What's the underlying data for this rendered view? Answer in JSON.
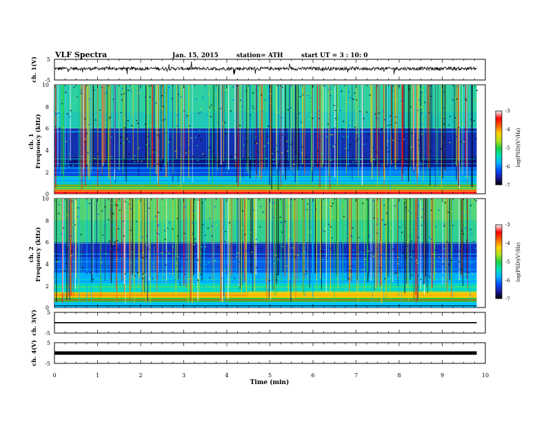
{
  "header": {
    "title": "VLF Spectra",
    "date": "Jan. 15, 2015",
    "station": "station= ATH",
    "start": "start  UT =  3 : 10: 0"
  },
  "chart_data": [
    {
      "type": "line",
      "panel": "ch1",
      "ylabel": "ch. 1(V)",
      "ylim": [
        -5,
        5
      ],
      "y_ticks": [
        "5",
        "-5"
      ],
      "baseline_v": 0.5,
      "xlim": [
        0,
        10
      ]
    },
    {
      "type": "heatmap",
      "panel": "ch1-spectrogram",
      "ylabel_line1": "ch. 1",
      "ylabel_line2": "Frequency  (kHz)",
      "ylim": [
        0,
        10
      ],
      "y_ticks": [
        "0",
        "2",
        "4",
        "6",
        "8",
        "10"
      ],
      "xlim": [
        0,
        9.8
      ],
      "step_time_min": 4.5,
      "colorbar": {
        "label": "log(PSD)(V²/Hz)",
        "range": [
          -7,
          -3
        ],
        "ticks": [
          "-3",
          "-4",
          "-5",
          "-6",
          "-7"
        ],
        "colors": [
          "#000000",
          "#1a1aa0",
          "#0050ff",
          "#00b4ff",
          "#00e0b0",
          "#22d040",
          "#b8e020",
          "#ffd000",
          "#ff6000",
          "#ff0000",
          "#ffffff"
        ]
      }
    },
    {
      "type": "heatmap",
      "panel": "ch2-spectrogram",
      "ylabel_line1": "ch. 2",
      "ylabel_line2": "Frequency  (kHz)",
      "ylim": [
        0,
        10
      ],
      "y_ticks": [
        "0",
        "2",
        "4",
        "6",
        "8",
        "10"
      ],
      "xlim": [
        0,
        9.8
      ],
      "step_time_min": 4.5,
      "colorbar": {
        "label": "log(PSD)(V²/Hz)",
        "range": [
          -7,
          -3
        ],
        "ticks": [
          "-3",
          "-4",
          "-5",
          "-6",
          "-7"
        ],
        "colors": [
          "#000000",
          "#1a1aa0",
          "#0050ff",
          "#00b4ff",
          "#00e0b0",
          "#22d040",
          "#b8e020",
          "#ffd000",
          "#ff6000",
          "#ff0000",
          "#ffffff"
        ]
      }
    },
    {
      "type": "line",
      "panel": "ch3",
      "ylabel": "ch. 3(V)",
      "ylim": [
        -5,
        5
      ],
      "y_ticks": [
        "5",
        "-5"
      ],
      "baseline_v": 0,
      "xlim": [
        0,
        9.8
      ]
    },
    {
      "type": "line",
      "panel": "ch4",
      "ylabel": "ch. 4(V)",
      "ylim": [
        -5,
        5
      ],
      "y_ticks": [
        "5",
        "-5"
      ],
      "baseline_v": 0,
      "xlim": [
        0,
        9.8
      ]
    }
  ],
  "x_axis": {
    "label": "Time  (min)",
    "range": [
      0,
      10
    ],
    "ticks": [
      "0",
      "1",
      "2",
      "3",
      "4",
      "5",
      "6",
      "7",
      "8",
      "9",
      "10"
    ]
  }
}
